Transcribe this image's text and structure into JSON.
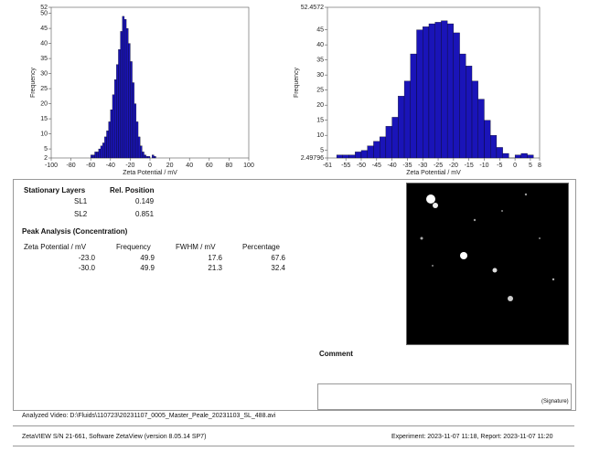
{
  "chart_data": [
    {
      "type": "histogram",
      "xlabel": "Zeta Potential / mV",
      "ylabel": "Frequency",
      "color": "#1a14b8",
      "bins": [
        -60,
        -58,
        -56,
        -54,
        -52,
        -50,
        -48,
        -46,
        -44,
        -42,
        -40,
        -38,
        -36,
        -34,
        -32,
        -30,
        -28,
        -26,
        -24,
        -22,
        -20,
        -18,
        -16,
        -14,
        -12,
        -10,
        -8,
        -6,
        -4,
        -2,
        0,
        2,
        4,
        6
      ],
      "values": [
        3,
        3,
        4,
        4,
        5,
        6,
        7,
        9,
        11,
        14,
        18,
        23,
        28,
        33,
        38,
        44,
        49,
        48,
        45,
        40,
        34,
        27,
        20,
        14,
        9,
        6,
        4,
        3,
        2.5,
        2.5,
        2,
        3,
        2.5
      ],
      "xlim": [
        -100,
        100
      ],
      "xticks": [
        -100,
        -80,
        -60,
        -40,
        -20,
        0,
        20,
        40,
        60,
        80,
        100
      ],
      "ylim": [
        2,
        52
      ],
      "yticks": [
        2,
        5,
        10,
        15,
        20,
        25,
        30,
        35,
        40,
        45,
        50,
        52
      ]
    },
    {
      "type": "histogram",
      "xlabel": "Zeta Potential / mV",
      "ylabel": "Frequency",
      "color": "#1a14b8",
      "bins": [
        -58,
        -56,
        -54,
        -52,
        -50,
        -48,
        -46,
        -44,
        -42,
        -40,
        -38,
        -36,
        -34,
        -32,
        -30,
        -28,
        -26,
        -24,
        -22,
        -20,
        -18,
        -16,
        -14,
        -12,
        -10,
        -8,
        -6,
        -4,
        -2,
        0,
        2,
        4,
        6
      ],
      "values": [
        3.5,
        3.5,
        3.5,
        4.5,
        5,
        6.5,
        8,
        9.5,
        13,
        16,
        23,
        28,
        37,
        45,
        46,
        47,
        47.5,
        48,
        47,
        44,
        37,
        33,
        28,
        22,
        15,
        10,
        6,
        4,
        2.5,
        3.5,
        4,
        3.5
      ],
      "xlim": [
        -61,
        8
      ],
      "xticks": [
        -61,
        -55,
        -50,
        -45,
        -40,
        -35,
        -30,
        -25,
        -20,
        -15,
        -10,
        -5,
        0,
        5,
        8
      ],
      "ylim": [
        2.49796,
        52.4572
      ],
      "yticks": [
        2.49796,
        5,
        10,
        15,
        20,
        25,
        30,
        35,
        40,
        45,
        52.4572
      ]
    }
  ],
  "stationary_layers": {
    "header": [
      "Stationary Layers",
      "Rel. Position"
    ],
    "rows": [
      [
        "SL1",
        "0.149"
      ],
      [
        "SL2",
        "0.851"
      ]
    ]
  },
  "peak_analysis": {
    "title": "Peak Analysis (Concentration)",
    "header": [
      "Zeta Potential / mV",
      "Frequency",
      "FWHM / mV",
      "Percentage"
    ],
    "rows": [
      [
        "-23.0",
        "49.9",
        "17.6",
        "67.6"
      ],
      [
        "-30.0",
        "49.9",
        "21.3",
        "32.4"
      ]
    ]
  },
  "comment": "Comment",
  "signature": "(Signature)",
  "analyzed_video": "Analyzed Video: D:\\Fluids\\110723\\20231107_0005_Master_Peale_20231103_SL_488.avi",
  "footer": {
    "left": "ZetaVIEW S/N 21-661, Software ZetaView (version 8.05.14 SP7)",
    "right": "Experiment: 2023-11-07 11:18, Report: 2023-11-07 11:20"
  }
}
